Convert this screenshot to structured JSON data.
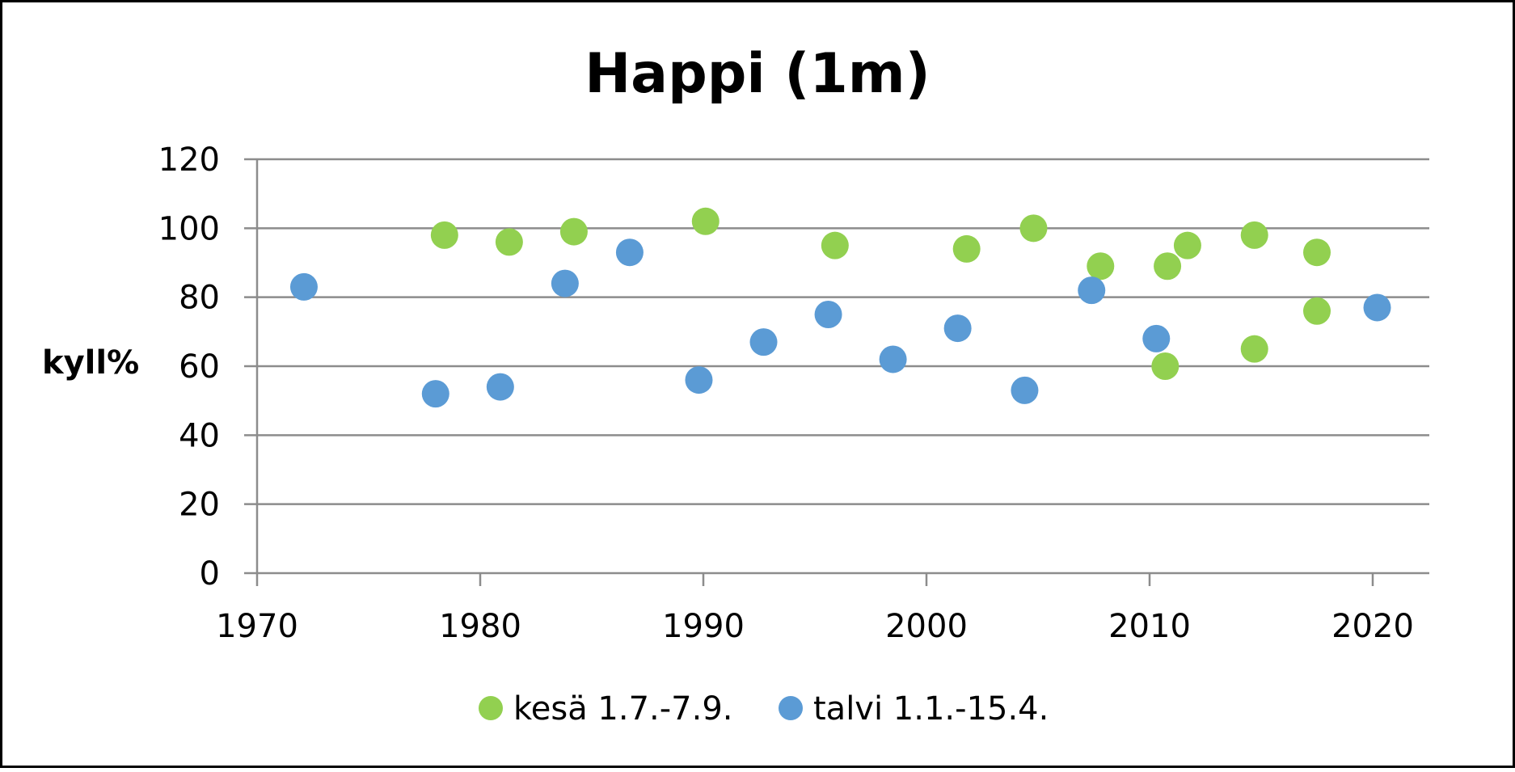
{
  "chart_data": {
    "type": "scatter",
    "title": "Happi (1m)",
    "xlabel": "",
    "ylabel": "kyll%",
    "xlim": [
      1970,
      2023
    ],
    "ylim": [
      0,
      120
    ],
    "x_ticks": [
      1970,
      1980,
      1990,
      2000,
      2010,
      2020
    ],
    "y_ticks": [
      0,
      20,
      40,
      60,
      80,
      100,
      120
    ],
    "grid": true,
    "legend_position": "bottom",
    "series": [
      {
        "name": "kesä 1.7.-7.9.",
        "color": "#92d050",
        "points": [
          {
            "x": 1978.4,
            "y": 98
          },
          {
            "x": 1981.3,
            "y": 96
          },
          {
            "x": 1984.2,
            "y": 99
          },
          {
            "x": 1990.1,
            "y": 102
          },
          {
            "x": 1995.9,
            "y": 95
          },
          {
            "x": 2001.8,
            "y": 94
          },
          {
            "x": 2004.8,
            "y": 100
          },
          {
            "x": 2007.8,
            "y": 89
          },
          {
            "x": 2010.7,
            "y": 60
          },
          {
            "x": 2010.8,
            "y": 89
          },
          {
            "x": 2011.7,
            "y": 95
          },
          {
            "x": 2014.7,
            "y": 65
          },
          {
            "x": 2014.7,
            "y": 98
          },
          {
            "x": 2017.5,
            "y": 76
          },
          {
            "x": 2017.5,
            "y": 93
          }
        ]
      },
      {
        "name": "talvi 1.1.-15.4.",
        "color": "#5b9bd5",
        "points": [
          {
            "x": 1972.1,
            "y": 83
          },
          {
            "x": 1978.0,
            "y": 52
          },
          {
            "x": 1980.9,
            "y": 54
          },
          {
            "x": 1983.8,
            "y": 84
          },
          {
            "x": 1986.7,
            "y": 93
          },
          {
            "x": 1989.8,
            "y": 56
          },
          {
            "x": 1992.7,
            "y": 67
          },
          {
            "x": 1995.6,
            "y": 75
          },
          {
            "x": 1998.5,
            "y": 62
          },
          {
            "x": 2001.4,
            "y": 71
          },
          {
            "x": 2004.4,
            "y": 53
          },
          {
            "x": 2007.4,
            "y": 82
          },
          {
            "x": 2010.3,
            "y": 68
          },
          {
            "x": 2020.2,
            "y": 77
          }
        ]
      }
    ]
  }
}
